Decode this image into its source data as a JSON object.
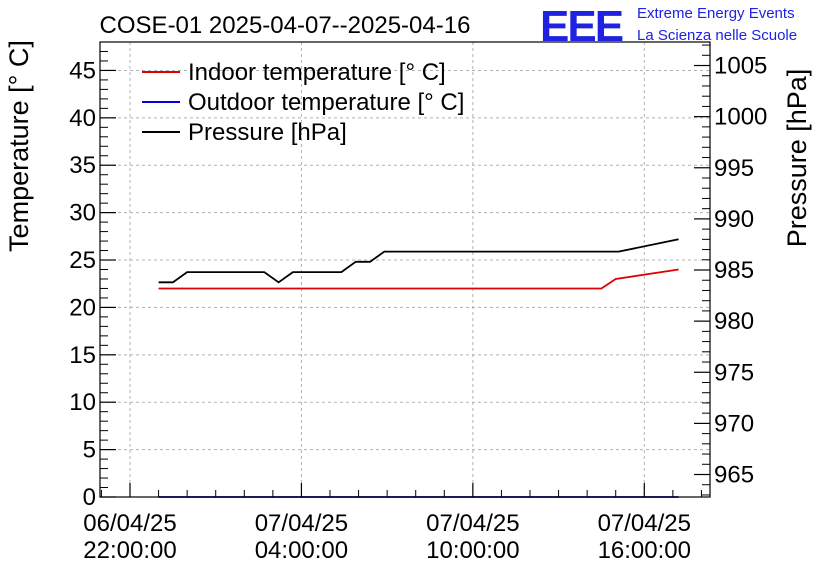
{
  "chart_data": {
    "type": "line",
    "title": "COSE-01 2025-04-07--2025-04-16",
    "logo": {
      "text": "EEE",
      "line1": "Extreme Energy Events",
      "line2": "La Scienza nelle Scuole",
      "color": "#1f22e0"
    },
    "ylabel_left": "Temperature [° C]",
    "ylabel_right": "Pressure [hPa]",
    "x_unit": "hours since 2025-04-06 22:00",
    "xlim": [
      -1.05,
      20.3
    ],
    "ylim_left": [
      0,
      48
    ],
    "ylim_right": [
      962.8,
      1007.3
    ],
    "yticks_left": [
      0,
      5,
      10,
      15,
      20,
      25,
      30,
      35,
      40,
      45
    ],
    "yticks_right": [
      965,
      970,
      975,
      980,
      985,
      990,
      995,
      1000,
      1005
    ],
    "xticks": [
      {
        "x": 0,
        "line1": "06/04/25",
        "line2": "22:00:00"
      },
      {
        "x": 6,
        "line1": "07/04/25",
        "line2": "04:00:00"
      },
      {
        "x": 12,
        "line1": "07/04/25",
        "line2": "10:00:00"
      },
      {
        "x": 18,
        "line1": "07/04/25",
        "line2": "16:00:00"
      }
    ],
    "grid": true,
    "legend_position": "top-left",
    "series": [
      {
        "name": "Indoor temperature [° C]",
        "color": "#e00000",
        "axis": "left",
        "x": [
          1,
          16.5,
          17,
          19.2
        ],
        "y": [
          22,
          22,
          23,
          24
        ]
      },
      {
        "name": "Outdoor temperature [° C]",
        "color": "#0000e0",
        "axis": "left",
        "x": [
          1,
          19.2
        ],
        "y": [
          0,
          0
        ]
      },
      {
        "name": "Pressure [hPa]",
        "color": "#000000",
        "axis": "right",
        "x": [
          1,
          1.5,
          2,
          4.7,
          5.2,
          5.7,
          7.4,
          7.9,
          8.4,
          8.9,
          17.1,
          19.2
        ],
        "y": [
          983.8,
          983.8,
          984.8,
          984.8,
          983.8,
          984.8,
          984.8,
          985.8,
          985.8,
          986.8,
          986.8,
          988.0
        ]
      }
    ]
  }
}
